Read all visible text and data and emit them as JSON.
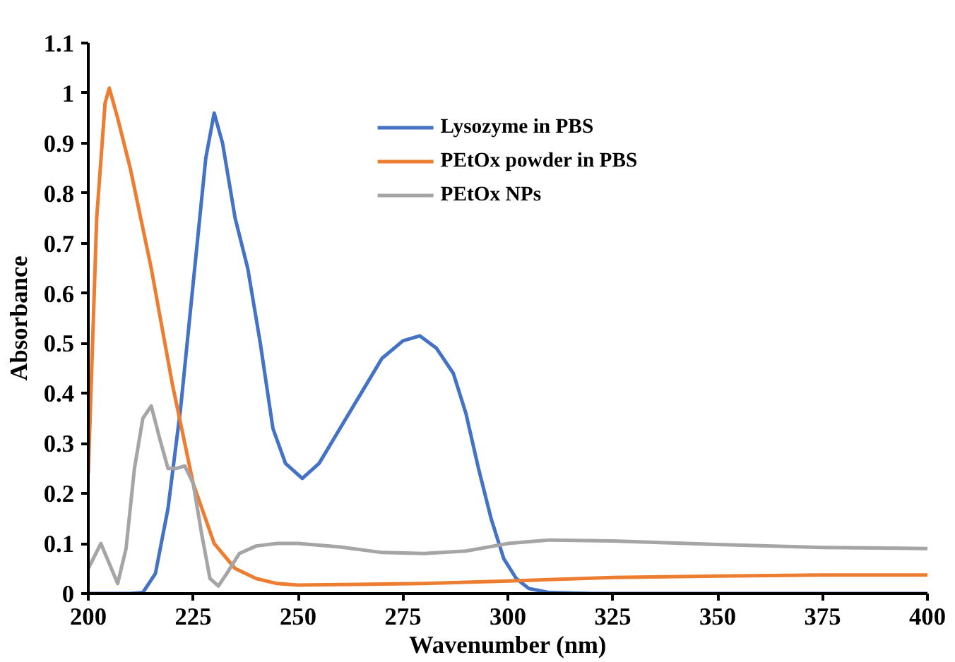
{
  "chart_data": {
    "type": "line",
    "xlabel": "Wavenumber (nm)",
    "ylabel": "Absorbance",
    "xlim": [
      200,
      400
    ],
    "ylim": [
      0,
      1.1
    ],
    "xticks": [
      200,
      225,
      250,
      275,
      300,
      325,
      350,
      375,
      400
    ],
    "yticks": [
      {
        "value": 0,
        "label": "0"
      },
      {
        "value": 0.1,
        "label": "0.1"
      },
      {
        "value": 0.2,
        "label": "0.2"
      },
      {
        "value": 0.3,
        "label": "0.3"
      },
      {
        "value": 0.4,
        "label": "0.4"
      },
      {
        "value": 0.5,
        "label": "0.5"
      },
      {
        "value": 0.6,
        "label": "0.6"
      },
      {
        "value": 0.7,
        "label": "0.7"
      },
      {
        "value": 0.8,
        "label": "0.8"
      },
      {
        "value": 0.9,
        "label": "0.9"
      },
      {
        "value": 1,
        "label": "1"
      },
      {
        "value": 1.1,
        "label": "1.1"
      }
    ],
    "grid": false,
    "legend": "top",
    "marker": "none",
    "line_style": "solid",
    "series": [
      {
        "name": "Lysozyme in PBS",
        "color": "#4472c4",
        "x": [
          200,
          210,
          213,
          216,
          219,
          222,
          225,
          228,
          230,
          232,
          235,
          238,
          241,
          244,
          247,
          251,
          255,
          260,
          265,
          270,
          275,
          279,
          283,
          287,
          290,
          293,
          296,
          299,
          302,
          305,
          310,
          320,
          350,
          400
        ],
        "values": [
          0,
          0,
          0.002,
          0.04,
          0.17,
          0.37,
          0.62,
          0.87,
          0.96,
          0.9,
          0.75,
          0.65,
          0.5,
          0.33,
          0.26,
          0.23,
          0.26,
          0.33,
          0.4,
          0.47,
          0.505,
          0.515,
          0.49,
          0.44,
          0.36,
          0.25,
          0.15,
          0.07,
          0.03,
          0.01,
          0.002,
          0,
          0,
          0
        ]
      },
      {
        "name": "PEtOx powder in PBS",
        "color": "#ed7d31",
        "x": [
          200,
          202,
          204,
          205,
          207,
          210,
          215,
          220,
          225,
          230,
          235,
          240,
          245,
          250,
          260,
          280,
          300,
          325,
          350,
          375,
          400
        ],
        "values": [
          0.24,
          0.75,
          0.98,
          1.01,
          0.95,
          0.85,
          0.65,
          0.42,
          0.22,
          0.1,
          0.05,
          0.03,
          0.02,
          0.017,
          0.018,
          0.02,
          0.025,
          0.032,
          0.035,
          0.037,
          0.037
        ]
      },
      {
        "name": "PEtOx NPs",
        "color": "#a5a5a5",
        "x": [
          200,
          203,
          205,
          207,
          209,
          211,
          213,
          215,
          217,
          219,
          221,
          223,
          225,
          227,
          229,
          231,
          233,
          236,
          240,
          245,
          250,
          260,
          270,
          280,
          290,
          300,
          310,
          325,
          350,
          375,
          400
        ],
        "values": [
          0.05,
          0.1,
          0.06,
          0.02,
          0.09,
          0.25,
          0.35,
          0.375,
          0.31,
          0.25,
          0.25,
          0.255,
          0.22,
          0.12,
          0.03,
          0.015,
          0.04,
          0.08,
          0.095,
          0.1,
          0.1,
          0.093,
          0.082,
          0.08,
          0.085,
          0.1,
          0.107,
          0.105,
          0.098,
          0.092,
          0.09
        ]
      }
    ]
  }
}
